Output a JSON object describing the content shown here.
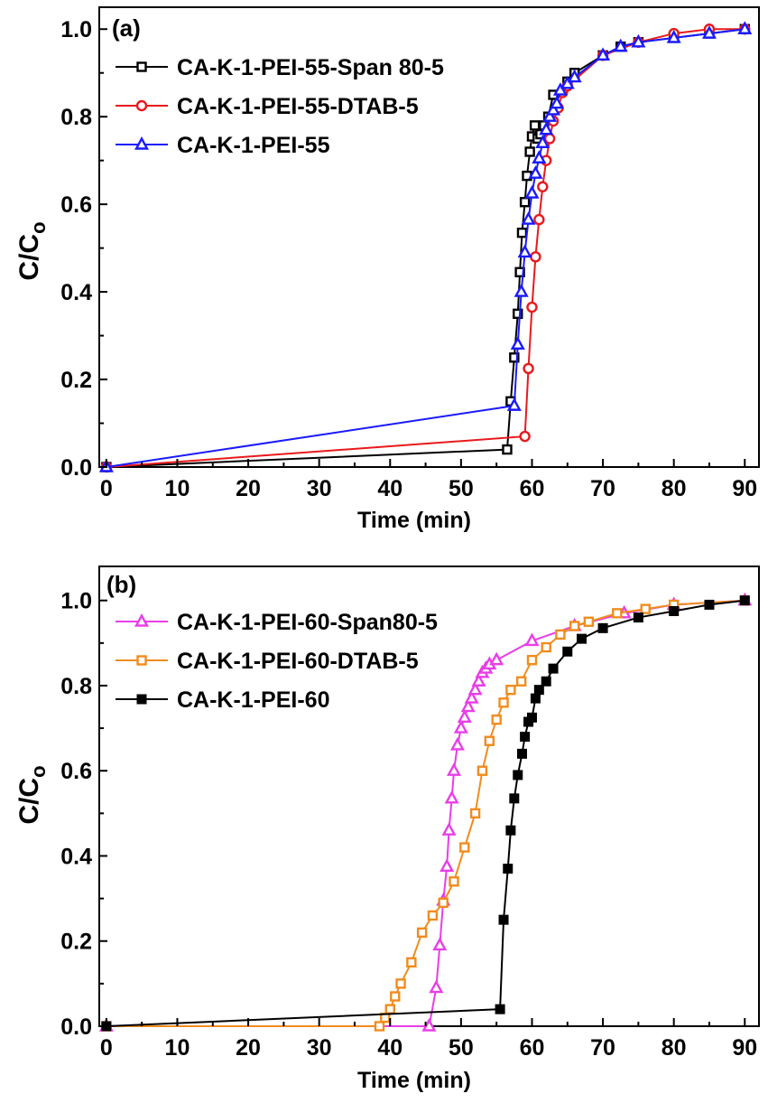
{
  "chart_data": [
    {
      "type": "line",
      "panel_label": "(a)",
      "xlabel": "Time (min)",
      "ylabel_main": "C/C",
      "ylabel_sub": "o",
      "xlim": [
        -1,
        92
      ],
      "ylim": [
        0,
        1.05
      ],
      "xticks": [
        0,
        10,
        20,
        30,
        40,
        50,
        60,
        70,
        80,
        90
      ],
      "yticks": [
        0.0,
        0.2,
        0.4,
        0.6,
        0.8,
        1.0
      ],
      "xtick_labels": [
        "0",
        "10",
        "20",
        "30",
        "40",
        "50",
        "60",
        "70",
        "80",
        "90"
      ],
      "ytick_labels": [
        "0.0",
        "0.2",
        "0.4",
        "0.6",
        "0.8",
        "1.0"
      ],
      "legend_position": "top-left",
      "series": [
        {
          "name": "CA-K-1-PEI-55-Span 80-5",
          "color": "#000000",
          "marker": "square-open",
          "x": [
            0,
            56.5,
            57,
            57.5,
            58,
            58.3,
            58.6,
            59,
            59.3,
            59.7,
            60,
            60.4,
            60.8,
            61.2,
            61.7,
            62.3,
            63,
            65,
            66,
            70,
            72.5,
            75,
            80,
            85,
            90
          ],
          "y": [
            0,
            0.04,
            0.15,
            0.25,
            0.35,
            0.445,
            0.535,
            0.605,
            0.665,
            0.72,
            0.755,
            0.78,
            0.75,
            0.76,
            0.78,
            0.8,
            0.85,
            0.88,
            0.9,
            0.94,
            0.96,
            0.97,
            0.98,
            0.99,
            1.0
          ]
        },
        {
          "name": "CA-K-1-PEI-55-DTAB-5",
          "color": "#e8191c",
          "marker": "circle-open",
          "x": [
            0,
            59,
            59.5,
            60,
            60.5,
            61,
            61.5,
            62,
            62.5,
            63,
            63.7,
            64.3,
            65,
            70,
            75,
            80,
            85,
            90
          ],
          "y": [
            0,
            0.07,
            0.225,
            0.365,
            0.48,
            0.565,
            0.64,
            0.7,
            0.75,
            0.79,
            0.82,
            0.855,
            0.87,
            0.94,
            0.97,
            0.99,
            1.0,
            1.0
          ],
          "note": ""
        },
        {
          "name": "CA-K-1-PEI-55",
          "color": "#1a1aff",
          "marker": "triangle-open",
          "x": [
            0,
            57.5,
            58,
            58.5,
            59,
            59.5,
            60,
            60.5,
            61,
            61.5,
            62,
            62.5,
            63,
            63.5,
            64,
            65,
            66,
            70,
            72.5,
            75,
            80,
            85,
            90
          ],
          "y": [
            0,
            0.14,
            0.28,
            0.4,
            0.49,
            0.565,
            0.625,
            0.67,
            0.705,
            0.74,
            0.77,
            0.8,
            0.815,
            0.83,
            0.86,
            0.875,
            0.89,
            0.94,
            0.96,
            0.97,
            0.98,
            0.99,
            1.0
          ]
        }
      ]
    },
    {
      "type": "line",
      "panel_label": "(b)",
      "xlabel": "Time (min)",
      "ylabel_main": "C/C",
      "ylabel_sub": "o",
      "xlim": [
        -1,
        92
      ],
      "ylim": [
        0,
        1.08
      ],
      "xticks": [
        0,
        10,
        20,
        30,
        40,
        50,
        60,
        70,
        80,
        90
      ],
      "yticks": [
        0.0,
        0.2,
        0.4,
        0.6,
        0.8,
        1.0
      ],
      "xtick_labels": [
        "0",
        "10",
        "20",
        "30",
        "40",
        "50",
        "60",
        "70",
        "80",
        "90"
      ],
      "ytick_labels": [
        "0.0",
        "0.2",
        "0.4",
        "0.6",
        "0.8",
        "1.0"
      ],
      "legend_position": "top-left",
      "series": [
        {
          "name": "CA-K-1-PEI-60-Span80-5",
          "color": "#e83ee8",
          "marker": "triangle-open",
          "x": [
            0,
            45.5,
            46.5,
            47,
            47.5,
            48,
            48.3,
            48.7,
            49,
            49.5,
            50,
            50.5,
            51,
            51.5,
            52,
            52.5,
            53,
            53.5,
            54,
            55,
            60,
            66,
            73,
            80,
            90
          ],
          "y": [
            0,
            0.0,
            0.09,
            0.19,
            0.295,
            0.375,
            0.46,
            0.535,
            0.6,
            0.66,
            0.7,
            0.725,
            0.75,
            0.77,
            0.79,
            0.81,
            0.83,
            0.84,
            0.85,
            0.86,
            0.905,
            0.94,
            0.97,
            0.99,
            1.0
          ]
        },
        {
          "name": "CA-K-1-PEI-60-DTAB-5",
          "color": "#f08c1e",
          "marker": "square-open",
          "x": [
            0,
            38.5,
            39.3,
            40,
            40.7,
            41.5,
            43,
            44.5,
            46,
            47.5,
            49,
            50.5,
            52,
            53,
            54,
            55,
            56,
            57,
            58.5,
            60,
            62,
            64,
            66,
            68,
            72,
            76,
            80,
            90
          ],
          "y": [
            0,
            0.0,
            0.02,
            0.04,
            0.07,
            0.1,
            0.15,
            0.22,
            0.26,
            0.29,
            0.34,
            0.42,
            0.5,
            0.6,
            0.67,
            0.72,
            0.76,
            0.79,
            0.81,
            0.86,
            0.89,
            0.92,
            0.94,
            0.95,
            0.97,
            0.98,
            0.99,
            1.0
          ]
        },
        {
          "name": "CA-K-1-PEI-60",
          "color": "#000000",
          "marker": "square-filled",
          "x": [
            0,
            55.5,
            56,
            56.6,
            57,
            57.5,
            58,
            58.6,
            59,
            59.5,
            60,
            60.5,
            61,
            62,
            63,
            65,
            67,
            70,
            75,
            80,
            85,
            90
          ],
          "y": [
            0,
            0.04,
            0.25,
            0.37,
            0.46,
            0.535,
            0.59,
            0.64,
            0.68,
            0.715,
            0.725,
            0.77,
            0.79,
            0.81,
            0.84,
            0.88,
            0.91,
            0.935,
            0.96,
            0.975,
            0.99,
            1.0
          ]
        }
      ]
    }
  ]
}
